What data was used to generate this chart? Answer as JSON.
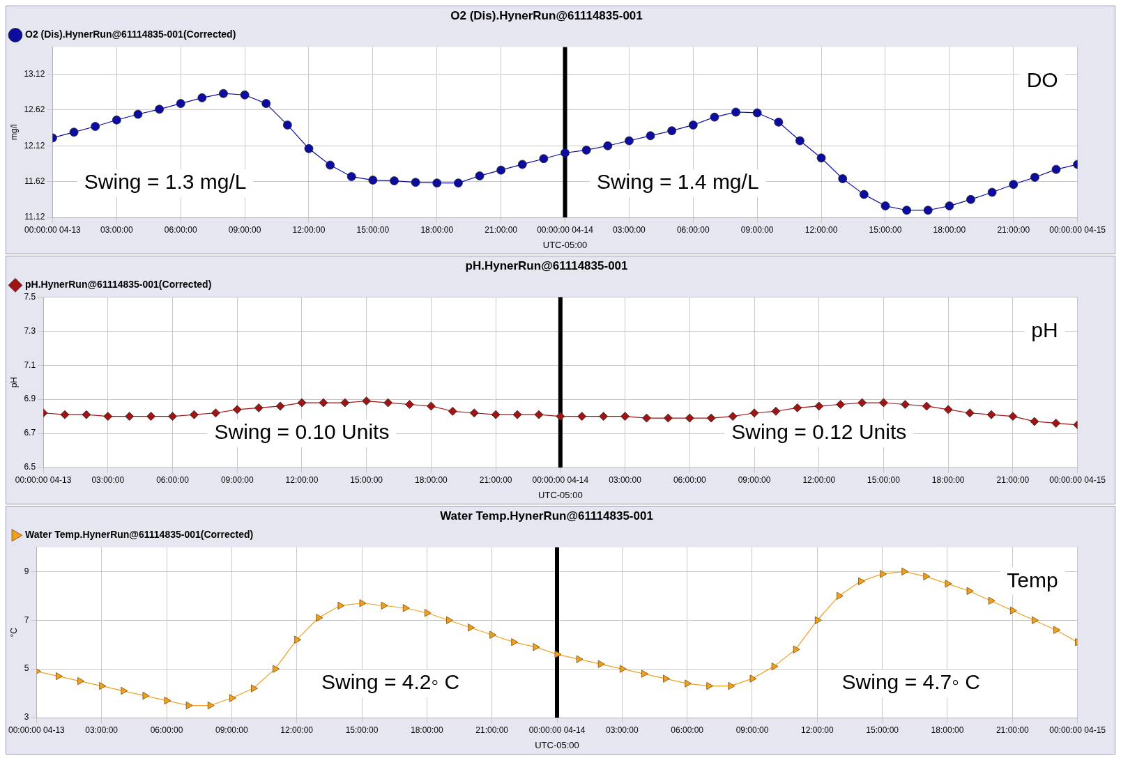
{
  "chart_data": [
    {
      "type": "line",
      "title": "O2 (Dis).HynerRun@61114835-001",
      "xlabel": "UTC-05:00",
      "ylabel": "mg/l",
      "legend": "top left",
      "marker": "circle",
      "grid": true,
      "x": [
        "--04-13T00:00",
        "--04-13T01:00",
        "--04-13T02:00",
        "--04-13T03:00",
        "--04-13T04:00",
        "--04-13T05:00",
        "--04-13T06:00",
        "--04-13T07:00",
        "--04-13T08:00",
        "--04-13T09:00",
        "--04-13T10:00",
        "--04-13T11:00",
        "--04-13T12:00",
        "--04-13T13:00",
        "--04-13T14:00",
        "--04-13T15:00",
        "--04-13T16:00",
        "--04-13T17:00",
        "--04-13T18:00",
        "--04-13T19:00",
        "--04-13T20:00",
        "--04-13T21:00",
        "--04-13T22:00",
        "--04-13T23:00",
        "--04-14T00:00",
        "--04-14T01:00",
        "--04-14T02:00",
        "--04-14T03:00",
        "--04-14T04:00",
        "--04-14T05:00",
        "--04-14T06:00",
        "--04-14T07:00",
        "--04-14T08:00",
        "--04-14T09:00",
        "--04-14T10:00",
        "--04-14T11:00",
        "--04-14T12:00",
        "--04-14T13:00",
        "--04-14T14:00",
        "--04-14T15:00",
        "--04-14T16:00",
        "--04-14T17:00",
        "--04-14T18:00",
        "--04-14T19:00",
        "--04-14T20:00",
        "--04-14T21:00",
        "--04-14T22:00",
        "--04-14T23:00",
        "--04-15T00:00"
      ],
      "series": [
        {
          "name": "O2 (Dis).HynerRun@61114835-001(Corrected)",
          "color": "#0c0ca0",
          "values": [
            12.23,
            12.31,
            12.39,
            12.48,
            12.56,
            12.63,
            12.71,
            12.79,
            12.85,
            12.83,
            12.71,
            12.41,
            12.08,
            11.85,
            11.69,
            11.64,
            11.63,
            11.61,
            11.6,
            11.6,
            11.7,
            11.78,
            11.86,
            11.94,
            12.02,
            12.06,
            12.12,
            12.19,
            12.26,
            12.33,
            12.41,
            12.52,
            12.59,
            12.58,
            12.45,
            12.19,
            11.95,
            11.66,
            11.44,
            11.28,
            11.22,
            11.22,
            11.28,
            11.37,
            11.47,
            11.58,
            11.68,
            11.79,
            11.86
          ]
        }
      ],
      "xlim": [
        "--04-13T00:00",
        "--04-15T00:00"
      ],
      "xticks": [
        {
          "value": "--04-13T00:00",
          "label": "00:00:00 04-13"
        },
        {
          "value": "--04-13T03:00",
          "label": "03:00:00"
        },
        {
          "value": "--04-13T06:00",
          "label": "06:00:00"
        },
        {
          "value": "--04-13T09:00",
          "label": "09:00:00"
        },
        {
          "value": "--04-13T12:00",
          "label": "12:00:00"
        },
        {
          "value": "--04-13T15:00",
          "label": "15:00:00"
        },
        {
          "value": "--04-13T18:00",
          "label": "18:00:00"
        },
        {
          "value": "--04-13T21:00",
          "label": "21:00:00"
        },
        {
          "value": "--04-14T00:00",
          "label": "00:00:00 04-14"
        },
        {
          "value": "--04-14T03:00",
          "label": "03:00:00"
        },
        {
          "value": "--04-14T06:00",
          "label": "06:00:00"
        },
        {
          "value": "--04-14T09:00",
          "label": "09:00:00"
        },
        {
          "value": "--04-14T12:00",
          "label": "12:00:00"
        },
        {
          "value": "--04-14T15:00",
          "label": "15:00:00"
        },
        {
          "value": "--04-14T18:00",
          "label": "18:00:00"
        },
        {
          "value": "--04-14T21:00",
          "label": "21:00:00"
        },
        {
          "value": "--04-15T00:00",
          "label": "00:00:00 04-15"
        }
      ],
      "ylim": [
        11.12,
        13.5
      ],
      "yticks": [
        11.12,
        11.62,
        12.12,
        12.62,
        13.12
      ],
      "ref_lines": [
        {
          "axis": "x",
          "value": "--04-14T00:00",
          "color": "#000000"
        }
      ],
      "annotations": [
        "DO",
        "Swing = 1.3 mg/L",
        "Swing = 1.4 mg/L"
      ]
    },
    {
      "type": "line",
      "title": "pH.HynerRun@61114835-001",
      "xlabel": "UTC-05:00",
      "ylabel": "pH",
      "legend": "top left",
      "marker": "diamond",
      "grid": true,
      "x": [
        "--04-13T00:00",
        "--04-13T01:00",
        "--04-13T02:00",
        "--04-13T03:00",
        "--04-13T04:00",
        "--04-13T05:00",
        "--04-13T06:00",
        "--04-13T07:00",
        "--04-13T08:00",
        "--04-13T09:00",
        "--04-13T10:00",
        "--04-13T11:00",
        "--04-13T12:00",
        "--04-13T13:00",
        "--04-13T14:00",
        "--04-13T15:00",
        "--04-13T16:00",
        "--04-13T17:00",
        "--04-13T18:00",
        "--04-13T19:00",
        "--04-13T20:00",
        "--04-13T21:00",
        "--04-13T22:00",
        "--04-13T23:00",
        "--04-14T00:00",
        "--04-14T01:00",
        "--04-14T02:00",
        "--04-14T03:00",
        "--04-14T04:00",
        "--04-14T05:00",
        "--04-14T06:00",
        "--04-14T07:00",
        "--04-14T08:00",
        "--04-14T09:00",
        "--04-14T10:00",
        "--04-14T11:00",
        "--04-14T12:00",
        "--04-14T13:00",
        "--04-14T14:00",
        "--04-14T15:00",
        "--04-14T16:00",
        "--04-14T17:00",
        "--04-14T18:00",
        "--04-14T19:00",
        "--04-14T20:00",
        "--04-14T21:00",
        "--04-14T22:00",
        "--04-14T23:00",
        "--04-15T00:00"
      ],
      "series": [
        {
          "name": "pH.HynerRun@61114835-001(Corrected)",
          "color": "#a01414",
          "values": [
            6.82,
            6.81,
            6.81,
            6.8,
            6.8,
            6.8,
            6.8,
            6.81,
            6.82,
            6.84,
            6.85,
            6.86,
            6.88,
            6.88,
            6.88,
            6.89,
            6.88,
            6.87,
            6.86,
            6.83,
            6.82,
            6.81,
            6.81,
            6.81,
            6.8,
            6.8,
            6.8,
            6.8,
            6.79,
            6.79,
            6.79,
            6.79,
            6.8,
            6.82,
            6.83,
            6.85,
            6.86,
            6.87,
            6.88,
            6.88,
            6.87,
            6.86,
            6.84,
            6.82,
            6.81,
            6.8,
            6.77,
            6.76,
            6.75
          ]
        }
      ],
      "xlim": [
        "--04-13T00:00",
        "--04-15T00:00"
      ],
      "xticks": [
        {
          "value": "--04-13T00:00",
          "label": "00:00:00 04-13"
        },
        {
          "value": "--04-13T03:00",
          "label": "03:00:00"
        },
        {
          "value": "--04-13T06:00",
          "label": "06:00:00"
        },
        {
          "value": "--04-13T09:00",
          "label": "09:00:00"
        },
        {
          "value": "--04-13T12:00",
          "label": "12:00:00"
        },
        {
          "value": "--04-13T15:00",
          "label": "15:00:00"
        },
        {
          "value": "--04-13T18:00",
          "label": "18:00:00"
        },
        {
          "value": "--04-13T21:00",
          "label": "21:00:00"
        },
        {
          "value": "--04-14T00:00",
          "label": "00:00:00 04-14"
        },
        {
          "value": "--04-14T03:00",
          "label": "03:00:00"
        },
        {
          "value": "--04-14T06:00",
          "label": "06:00:00"
        },
        {
          "value": "--04-14T09:00",
          "label": "09:00:00"
        },
        {
          "value": "--04-14T12:00",
          "label": "12:00:00"
        },
        {
          "value": "--04-14T15:00",
          "label": "15:00:00"
        },
        {
          "value": "--04-14T18:00",
          "label": "18:00:00"
        },
        {
          "value": "--04-14T21:00",
          "label": "21:00:00"
        },
        {
          "value": "--04-15T00:00",
          "label": "00:00:00 04-15"
        }
      ],
      "ylim": [
        6.5,
        7.5
      ],
      "yticks": [
        6.5,
        6.7,
        6.9,
        7.1,
        7.3,
        7.5
      ],
      "ref_lines": [
        {
          "axis": "x",
          "value": "--04-14T00:00",
          "color": "#000000"
        }
      ],
      "annotations": [
        "pH",
        "Swing = 0.10 Units",
        "Swing = 0.12 Units"
      ]
    },
    {
      "type": "line",
      "title": "Water Temp.HynerRun@61114835-001",
      "xlabel": "UTC-05:00",
      "ylabel": "°C",
      "legend": "top left",
      "marker": "triangle",
      "grid": true,
      "x": [
        "--04-13T00:00",
        "--04-13T01:00",
        "--04-13T02:00",
        "--04-13T03:00",
        "--04-13T04:00",
        "--04-13T05:00",
        "--04-13T06:00",
        "--04-13T07:00",
        "--04-13T08:00",
        "--04-13T09:00",
        "--04-13T10:00",
        "--04-13T11:00",
        "--04-13T12:00",
        "--04-13T13:00",
        "--04-13T14:00",
        "--04-13T15:00",
        "--04-13T16:00",
        "--04-13T17:00",
        "--04-13T18:00",
        "--04-13T19:00",
        "--04-13T20:00",
        "--04-13T21:00",
        "--04-13T22:00",
        "--04-13T23:00",
        "--04-14T00:00",
        "--04-14T01:00",
        "--04-14T02:00",
        "--04-14T03:00",
        "--04-14T04:00",
        "--04-14T05:00",
        "--04-14T06:00",
        "--04-14T07:00",
        "--04-14T08:00",
        "--04-14T09:00",
        "--04-14T10:00",
        "--04-14T11:00",
        "--04-14T12:00",
        "--04-14T13:00",
        "--04-14T14:00",
        "--04-14T15:00",
        "--04-14T16:00",
        "--04-14T17:00",
        "--04-14T18:00",
        "--04-14T19:00",
        "--04-14T20:00",
        "--04-14T21:00",
        "--04-14T22:00",
        "--04-14T23:00",
        "--04-15T00:00"
      ],
      "series": [
        {
          "name": "Water Temp.HynerRun@61114835-001(Corrected)",
          "color": "#f0a020",
          "values": [
            4.9,
            4.7,
            4.5,
            4.3,
            4.1,
            3.9,
            3.7,
            3.5,
            3.5,
            3.8,
            4.2,
            5.0,
            6.2,
            7.1,
            7.6,
            7.7,
            7.6,
            7.5,
            7.3,
            7.0,
            6.7,
            6.4,
            6.1,
            5.9,
            5.6,
            5.4,
            5.2,
            5.0,
            4.8,
            4.6,
            4.4,
            4.3,
            4.3,
            4.6,
            5.1,
            5.8,
            7.0,
            8.0,
            8.6,
            8.9,
            9.0,
            8.8,
            8.5,
            8.2,
            7.8,
            7.4,
            7.0,
            6.6,
            6.1
          ]
        }
      ],
      "xlim": [
        "--04-13T00:00",
        "--04-15T00:00"
      ],
      "xticks": [
        {
          "value": "--04-13T00:00",
          "label": "00:00:00 04-13"
        },
        {
          "value": "--04-13T03:00",
          "label": "03:00:00"
        },
        {
          "value": "--04-13T06:00",
          "label": "06:00:00"
        },
        {
          "value": "--04-13T09:00",
          "label": "09:00:00"
        },
        {
          "value": "--04-13T12:00",
          "label": "12:00:00"
        },
        {
          "value": "--04-13T15:00",
          "label": "15:00:00"
        },
        {
          "value": "--04-13T18:00",
          "label": "18:00:00"
        },
        {
          "value": "--04-13T21:00",
          "label": "21:00:00"
        },
        {
          "value": "--04-14T00:00",
          "label": "00:00:00 04-14"
        },
        {
          "value": "--04-14T03:00",
          "label": "03:00:00"
        },
        {
          "value": "--04-14T06:00",
          "label": "06:00:00"
        },
        {
          "value": "--04-14T09:00",
          "label": "09:00:00"
        },
        {
          "value": "--04-14T12:00",
          "label": "12:00:00"
        },
        {
          "value": "--04-14T15:00",
          "label": "15:00:00"
        },
        {
          "value": "--04-14T18:00",
          "label": "18:00:00"
        },
        {
          "value": "--04-14T21:00",
          "label": "21:00:00"
        },
        {
          "value": "--04-15T00:00",
          "label": "00:00:00 04-15"
        }
      ],
      "ylim": [
        3,
        10
      ],
      "yticks": [
        3,
        5,
        7,
        9
      ],
      "ref_lines": [
        {
          "axis": "x",
          "value": "--04-14T00:00",
          "color": "#000000"
        }
      ],
      "annotations": [
        "Temp",
        "Swing = 4.2◦ C",
        "Swing = 4.7◦ C"
      ]
    }
  ]
}
